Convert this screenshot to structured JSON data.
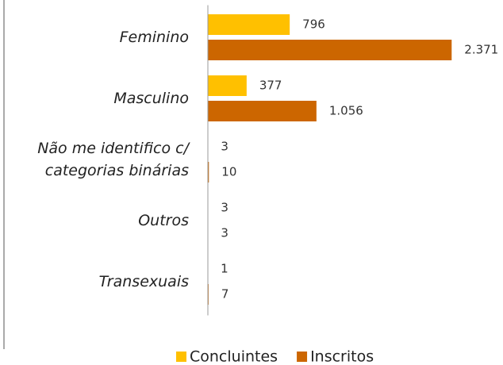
{
  "chart_data": {
    "type": "bar",
    "orientation": "horizontal",
    "categories": [
      "Feminino",
      "Masculino",
      "Não me identifico c/ categorias binárias",
      "Outros",
      "Transexuais"
    ],
    "series": [
      {
        "name": "Concluintes",
        "color": "#ffc000",
        "values": [
          796,
          377,
          3,
          3,
          1
        ]
      },
      {
        "name": "Inscritos",
        "color": "#cc6600",
        "values": [
          2371,
          1056,
          10,
          3,
          7
        ],
        "value_labels": [
          "2.371",
          "1.056",
          "10",
          "3",
          "7"
        ]
      }
    ],
    "xlim": [
      0,
      2500
    ],
    "legend": "bottom"
  }
}
